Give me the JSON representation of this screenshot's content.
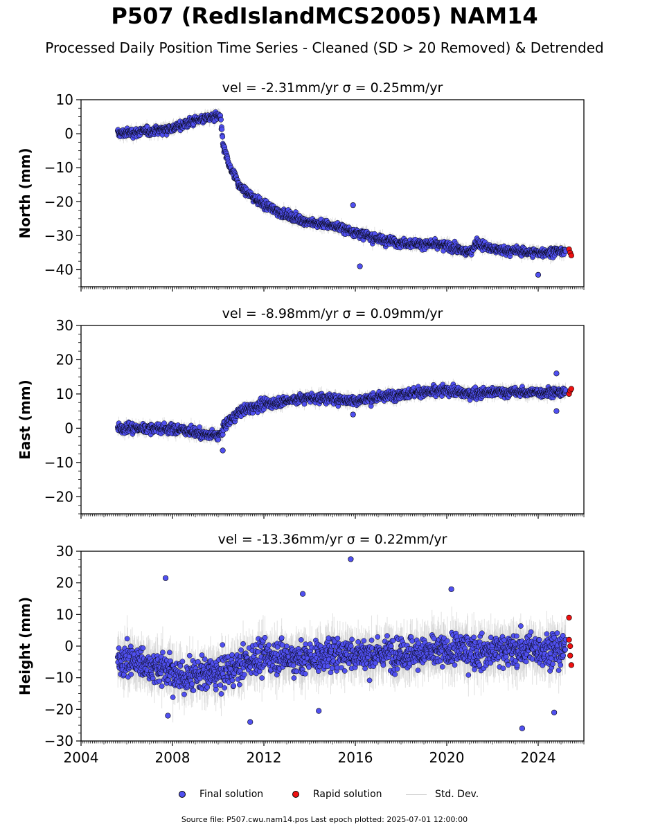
{
  "title": "P507 (RedIslandMCS2005) NAM14",
  "subtitle": "Processed Daily Position Time Series - Cleaned (SD > 20 Removed) & Detrended",
  "footer": "Source file: P507.cwu.nam14.pos  Last epoch plotted: 2025-07-01 12:00:00",
  "legend": {
    "final": "Final solution",
    "rapid": "Rapid solution",
    "std": "Std. Dev."
  },
  "colors": {
    "final": "#5050f0",
    "rapid": "#ee1111",
    "std": "#c8c8c8",
    "edge": "#000000"
  },
  "chart_data": [
    {
      "type": "scatter",
      "title": "vel = -2.31mm/yr   σ = 0.25mm/yr",
      "ylabel": "North (mm)",
      "xlim": [
        2004,
        2026
      ],
      "ylim": [
        -45,
        10
      ],
      "yticks": [
        10,
        0,
        -10,
        -20,
        -30,
        -40
      ],
      "series": [
        {
          "name": "Final solution",
          "points": [
            [
              2005.6,
              0
            ],
            [
              2006.5,
              0.5
            ],
            [
              2007.3,
              1
            ],
            [
              2008.2,
              2
            ],
            [
              2009.0,
              4
            ],
            [
              2009.8,
              5
            ],
            [
              2010.1,
              5
            ],
            [
              2010.2,
              -3
            ],
            [
              2010.5,
              -10
            ],
            [
              2011,
              -16
            ],
            [
              2012,
              -21
            ],
            [
              2013,
              -24
            ],
            [
              2014,
              -26
            ],
            [
              2015,
              -27
            ],
            [
              2016,
              -29
            ],
            [
              2017,
              -31
            ],
            [
              2018,
              -32
            ],
            [
              2019,
              -32.5
            ],
            [
              2020,
              -33
            ],
            [
              2021,
              -35
            ],
            [
              2021.3,
              -32
            ],
            [
              2022,
              -34
            ],
            [
              2023,
              -34.5
            ],
            [
              2024,
              -35
            ],
            [
              2025.2,
              -34.5
            ]
          ]
        },
        {
          "name": "Rapid solution",
          "points": [
            [
              2025.35,
              -34
            ],
            [
              2025.4,
              -35
            ],
            [
              2025.45,
              -35.8
            ]
          ]
        }
      ],
      "outliers": [
        [
          2015.9,
          -21
        ],
        [
          2016.2,
          -39
        ],
        [
          2024.0,
          -41.5
        ]
      ]
    },
    {
      "type": "scatter",
      "title": "vel = -8.98mm/yr   σ = 0.09mm/yr",
      "ylabel": "East (mm)",
      "xlim": [
        2004,
        2026
      ],
      "ylim": [
        -25,
        30
      ],
      "yticks": [
        30,
        20,
        10,
        0,
        -10,
        -20
      ],
      "series": [
        {
          "name": "Final solution",
          "points": [
            [
              2005.6,
              0
            ],
            [
              2006.5,
              0
            ],
            [
              2007.5,
              0
            ],
            [
              2008.5,
              -0.5
            ],
            [
              2009.5,
              -2
            ],
            [
              2010.1,
              -2
            ],
            [
              2010.3,
              1
            ],
            [
              2011,
              5
            ],
            [
              2012,
              7
            ],
            [
              2013,
              8
            ],
            [
              2014,
              9
            ],
            [
              2015,
              8.5
            ],
            [
              2016,
              8
            ],
            [
              2017,
              9
            ],
            [
              2018,
              10
            ],
            [
              2019,
              10.5
            ],
            [
              2020,
              11
            ],
            [
              2021,
              10
            ],
            [
              2022,
              10.5
            ],
            [
              2023,
              10.5
            ],
            [
              2024,
              10.5
            ],
            [
              2025.2,
              10.5
            ]
          ]
        },
        {
          "name": "Rapid solution",
          "points": [
            [
              2025.35,
              10
            ],
            [
              2025.4,
              11
            ],
            [
              2025.45,
              11.5
            ]
          ]
        }
      ],
      "outliers": [
        [
          2010.2,
          -6.5
        ],
        [
          2015.9,
          4
        ],
        [
          2024.8,
          16
        ],
        [
          2024.8,
          5
        ]
      ]
    },
    {
      "type": "scatter",
      "title": "vel = -13.36mm/yr   σ = 0.22mm/yr",
      "ylabel": "Height (mm)",
      "xlim": [
        2004,
        2026
      ],
      "ylim": [
        -30,
        30
      ],
      "yticks": [
        30,
        20,
        10,
        0,
        -10,
        -20,
        -30
      ],
      "xticks": [
        2004,
        2008,
        2012,
        2016,
        2020,
        2024
      ],
      "series": [
        {
          "name": "Final solution",
          "points": [
            [
              2005.6,
              -4
            ],
            [
              2006.5,
              -5
            ],
            [
              2007.5,
              -7
            ],
            [
              2008.5,
              -10
            ],
            [
              2009.5,
              -9
            ],
            [
              2010.5,
              -8
            ],
            [
              2011.5,
              -4
            ],
            [
              2012.5,
              -3
            ],
            [
              2013.5,
              -4
            ],
            [
              2014.5,
              -3
            ],
            [
              2015.5,
              -2
            ],
            [
              2016.5,
              -3
            ],
            [
              2017.5,
              -2
            ],
            [
              2018.5,
              -2
            ],
            [
              2019.5,
              -2
            ],
            [
              2020.5,
              -1
            ],
            [
              2021.5,
              -2
            ],
            [
              2022.5,
              -1
            ],
            [
              2023.5,
              -1
            ],
            [
              2024.5,
              -1
            ],
            [
              2025.2,
              -2
            ]
          ]
        },
        {
          "name": "Rapid solution",
          "points": [
            [
              2025.35,
              9
            ],
            [
              2025.35,
              2
            ],
            [
              2025.4,
              0
            ],
            [
              2025.4,
              -3
            ],
            [
              2025.45,
              -6
            ]
          ]
        }
      ],
      "outliers": [
        [
          2007.7,
          21.5
        ],
        [
          2015.8,
          27.5
        ],
        [
          2013.7,
          16.5
        ],
        [
          2020.2,
          18
        ],
        [
          2023.3,
          -26
        ],
        [
          2007.8,
          -22
        ],
        [
          2011.4,
          -24
        ],
        [
          2014.4,
          -20.5
        ],
        [
          2024.7,
          -21
        ]
      ]
    }
  ]
}
